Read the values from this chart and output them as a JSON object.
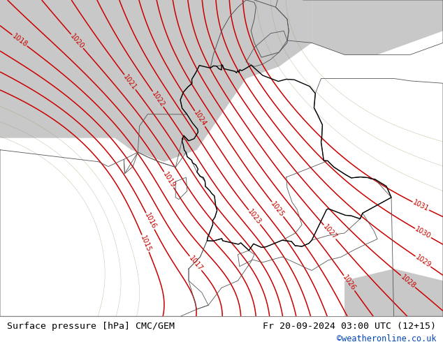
{
  "title_left": "Surface pressure [hPa] CMC/GEM",
  "title_right": "Fr 20-09-2024 03:00 UTC (12+15)",
  "watermark": "©weatheronline.co.uk",
  "background_land_green": "#b5e878",
  "background_sea_gray": "#c8c8c8",
  "contour_color": "#cc0000",
  "border_color_de": "#000000",
  "border_color_neighbor": "#555555",
  "text_color_left": "#000000",
  "text_color_right": "#000000",
  "watermark_color": "#0044bb",
  "title_fontsize": 9.5,
  "watermark_fontsize": 8.5,
  "contour_label_fontsize": 7,
  "figsize": [
    6.34,
    4.9
  ],
  "dpi": 100,
  "lon_min": -5,
  "lon_max": 22,
  "lat_min": 44.5,
  "lat_max": 57.8
}
